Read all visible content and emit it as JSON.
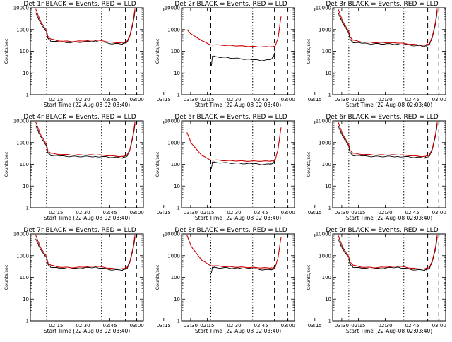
{
  "chart_data": [
    {
      "type": "line",
      "title": "Det 1r BLACK = Events, RED = LLD",
      "xlabel": "Start Time (22-Aug-08 02:03:40)",
      "ylabel": "Counts/sec",
      "x_ticks": [
        "02:15",
        "02:30",
        "02:45",
        "03:00",
        "03:15",
        "03:30"
      ],
      "y_ticks": [
        "1",
        "10",
        "100",
        "1000",
        "10000"
      ],
      "ylim": [
        1,
        10000
      ],
      "yscale": "log",
      "xlim": [
        -180,
        3600
      ],
      "vlines": [
        {
          "x": 360,
          "style": "dotted"
        },
        {
          "x": 2200,
          "style": "dotted"
        },
        {
          "x": 3000,
          "style": "dashed"
        },
        {
          "x": 3370,
          "style": "dashed"
        }
      ],
      "series": [
        {
          "name": "BLACK = Events",
          "color": "#000000",
          "x": [
            0,
            150,
            360,
            400,
            500,
            800,
            1200,
            1600,
            2000,
            2300,
            2600,
            2900,
            3050,
            3150,
            3260,
            3320
          ],
          "y": [
            6000,
            2000,
            800,
            400,
            300,
            260,
            250,
            270,
            300,
            250,
            220,
            220,
            250,
            500,
            2000,
            7000
          ]
        },
        {
          "name": "RED = LLD",
          "color": "#cc0000",
          "x": [
            0,
            150,
            360,
            400,
            500,
            800,
            1200,
            1600,
            2000,
            2300,
            2600,
            2900,
            3050,
            3150,
            3260,
            3320
          ],
          "y": [
            9000,
            2500,
            900,
            500,
            360,
            300,
            280,
            300,
            330,
            290,
            250,
            250,
            280,
            550,
            2500,
            9000
          ]
        }
      ]
    },
    {
      "type": "line",
      "title": "Det 2r BLACK = Events, RED = LLD",
      "xlabel": "Start Time (22-Aug-08 02:03:40)",
      "ylabel": "Counts/sec",
      "x_ticks": [
        "02:15",
        "02:30",
        "02:45",
        "03:00",
        "03:15",
        "03:30"
      ],
      "y_ticks": [
        "1",
        "10",
        "100",
        "1000",
        "10000"
      ],
      "ylim": [
        1,
        10000
      ],
      "yscale": "log",
      "xlim": [
        -180,
        3600
      ],
      "vlines": [
        {
          "x": 800,
          "style": "dashed"
        },
        {
          "x": 2200,
          "style": "dotted"
        },
        {
          "x": 2930,
          "style": "dashed"
        },
        {
          "x": 3370,
          "style": "dashed"
        }
      ],
      "series": [
        {
          "name": "BLACK = Events",
          "color": "#000000",
          "x": [
            820,
            850,
            1000,
            1400,
            1800,
            2200,
            2500,
            2800,
            2900,
            2960
          ],
          "y": [
            20,
            60,
            55,
            50,
            45,
            40,
            38,
            40,
            60,
            100
          ]
        },
        {
          "name": "RED = LLD",
          "color": "#cc0000",
          "x": [
            0,
            150,
            500,
            800,
            1200,
            1600,
            2000,
            2400,
            2800,
            2950,
            3050,
            3150
          ],
          "y": [
            1000,
            600,
            300,
            200,
            190,
            180,
            170,
            160,
            160,
            170,
            400,
            4000
          ]
        }
      ]
    },
    {
      "type": "line",
      "title": "Det 3r BLACK = Events, RED = LLD",
      "xlabel": "Start Time (22-Aug-08 02:03:40)",
      "ylabel": "Counts/sec",
      "x_ticks": [
        "02:15",
        "02:30",
        "02:45",
        "03:00",
        "03:15",
        "03:30"
      ],
      "y_ticks": [
        "1",
        "10",
        "100",
        "1000",
        "10000"
      ],
      "ylim": [
        1,
        10000
      ],
      "yscale": "log",
      "xlim": [
        -180,
        3600
      ],
      "vlines": [
        {
          "x": 360,
          "style": "dotted"
        },
        {
          "x": 2200,
          "style": "dotted"
        },
        {
          "x": 3000,
          "style": "dashed"
        },
        {
          "x": 3370,
          "style": "dashed"
        }
      ],
      "series": [
        {
          "name": "BLACK = Events",
          "color": "#000000",
          "x": [
            0,
            150,
            360,
            400,
            500,
            800,
            1200,
            1600,
            2000,
            2300,
            2600,
            2900,
            3050,
            3150,
            3260,
            3320
          ],
          "y": [
            6000,
            2000,
            700,
            350,
            260,
            230,
            220,
            220,
            210,
            200,
            180,
            170,
            200,
            400,
            1800,
            7000
          ]
        },
        {
          "name": "RED = LLD",
          "color": "#cc0000",
          "x": [
            0,
            150,
            360,
            400,
            500,
            800,
            1200,
            1600,
            2000,
            2300,
            2600,
            2900,
            3050,
            3150,
            3260,
            3320
          ],
          "y": [
            9000,
            2500,
            800,
            450,
            320,
            270,
            250,
            250,
            240,
            220,
            200,
            190,
            220,
            450,
            2200,
            9000
          ]
        }
      ]
    },
    {
      "type": "line",
      "title": "Det 4r BLACK = Events, RED = LLD",
      "xlabel": "Start Time (22-Aug-08 02:03:40)",
      "ylabel": "Counts/sec",
      "x_ticks": [
        "02:15",
        "02:30",
        "02:45",
        "03:00",
        "03:15",
        "03:30"
      ],
      "y_ticks": [
        "1",
        "10",
        "100",
        "1000",
        "10000"
      ],
      "ylim": [
        1,
        10000
      ],
      "yscale": "log",
      "xlim": [
        -180,
        3600
      ],
      "vlines": [
        {
          "x": 360,
          "style": "dotted"
        },
        {
          "x": 2200,
          "style": "dotted"
        },
        {
          "x": 3000,
          "style": "dashed"
        },
        {
          "x": 3370,
          "style": "dashed"
        }
      ],
      "series": [
        {
          "name": "BLACK = Events",
          "color": "#000000",
          "x": [
            0,
            150,
            360,
            400,
            500,
            800,
            1200,
            1600,
            2000,
            2300,
            2600,
            2900,
            3050,
            3150,
            3260,
            3320
          ],
          "y": [
            6000,
            2000,
            700,
            350,
            260,
            240,
            230,
            230,
            230,
            220,
            210,
            200,
            230,
            450,
            2000,
            7000
          ]
        },
        {
          "name": "RED = LLD",
          "color": "#cc0000",
          "x": [
            0,
            150,
            360,
            400,
            500,
            800,
            1200,
            1600,
            2000,
            2300,
            2600,
            2900,
            3050,
            3150,
            3260,
            3320
          ],
          "y": [
            9000,
            2500,
            800,
            450,
            320,
            290,
            270,
            270,
            270,
            260,
            240,
            230,
            260,
            500,
            2400,
            9000
          ]
        }
      ]
    },
    {
      "type": "line",
      "title": "Det 5r BLACK = Events, RED = LLD",
      "xlabel": "Start Time (22-Aug-08 02:03:40)",
      "ylabel": "Counts/sec",
      "x_ticks": [
        "02:15",
        "02:30",
        "02:45",
        "03:00",
        "03:15",
        "03:30"
      ],
      "y_ticks": [
        "1",
        "10",
        "100",
        "1000",
        "10000"
      ],
      "ylim": [
        1,
        10000
      ],
      "yscale": "log",
      "xlim": [
        -180,
        3600
      ],
      "vlines": [
        {
          "x": 800,
          "style": "dashed"
        },
        {
          "x": 2200,
          "style": "dotted"
        },
        {
          "x": 2930,
          "style": "dashed"
        },
        {
          "x": 3370,
          "style": "dashed"
        }
      ],
      "series": [
        {
          "name": "BLACK = Events",
          "color": "#000000",
          "x": [
            820,
            850,
            1000,
            1400,
            1800,
            2200,
            2500,
            2800,
            2900,
            2960
          ],
          "y": [
            60,
            130,
            120,
            115,
            110,
            105,
            100,
            100,
            120,
            200
          ]
        },
        {
          "name": "RED = LLD",
          "color": "#cc0000",
          "x": [
            0,
            150,
            500,
            800,
            1200,
            1600,
            2000,
            2400,
            2800,
            2950,
            3050,
            3150
          ],
          "y": [
            3000,
            900,
            250,
            160,
            150,
            145,
            140,
            140,
            140,
            150,
            500,
            5000
          ]
        }
      ]
    },
    {
      "type": "line",
      "title": "Det 6r BLACK = Events, RED = LLD",
      "xlabel": "Start Time (22-Aug-08 02:03:40)",
      "ylabel": "Counts/sec",
      "x_ticks": [
        "02:15",
        "02:30",
        "02:45",
        "03:00",
        "03:15",
        "03:30"
      ],
      "y_ticks": [
        "1",
        "10",
        "100",
        "1000",
        "10000"
      ],
      "ylim": [
        1,
        10000
      ],
      "yscale": "log",
      "xlim": [
        -180,
        3600
      ],
      "vlines": [
        {
          "x": 360,
          "style": "dotted"
        },
        {
          "x": 2200,
          "style": "dotted"
        },
        {
          "x": 3000,
          "style": "dashed"
        },
        {
          "x": 3370,
          "style": "dashed"
        }
      ],
      "series": [
        {
          "name": "BLACK = Events",
          "color": "#000000",
          "x": [
            0,
            150,
            360,
            400,
            500,
            800,
            1200,
            1600,
            2000,
            2300,
            2600,
            2900,
            3050,
            3150,
            3260,
            3320
          ],
          "y": [
            6000,
            2000,
            700,
            350,
            260,
            240,
            230,
            230,
            230,
            220,
            210,
            200,
            230,
            450,
            2000,
            7000
          ]
        },
        {
          "name": "RED = LLD",
          "color": "#cc0000",
          "x": [
            0,
            150,
            360,
            400,
            500,
            800,
            1200,
            1600,
            2000,
            2300,
            2600,
            2900,
            3050,
            3150,
            3260,
            3320
          ],
          "y": [
            9000,
            2500,
            800,
            450,
            320,
            290,
            270,
            270,
            270,
            260,
            240,
            230,
            260,
            500,
            2400,
            9000
          ]
        }
      ]
    },
    {
      "type": "line",
      "title": "Det 7r BLACK = Events, RED = LLD",
      "xlabel": "Start Time (22-Aug-08 02:03:40)",
      "ylabel": "Counts/sec",
      "x_ticks": [
        "02:15",
        "02:30",
        "02:45",
        "03:00",
        "03:15",
        "03:30"
      ],
      "y_ticks": [
        "1",
        "10",
        "100",
        "1000",
        "10000"
      ],
      "ylim": [
        1,
        10000
      ],
      "yscale": "log",
      "xlim": [
        -180,
        3600
      ],
      "vlines": [
        {
          "x": 360,
          "style": "dotted"
        },
        {
          "x": 2200,
          "style": "dotted"
        },
        {
          "x": 3000,
          "style": "dashed"
        },
        {
          "x": 3370,
          "style": "dashed"
        }
      ],
      "series": [
        {
          "name": "BLACK = Events",
          "color": "#000000",
          "x": [
            0,
            150,
            360,
            400,
            500,
            800,
            1200,
            1600,
            2000,
            2300,
            2600,
            2900,
            3050,
            3150,
            3260,
            3320
          ],
          "y": [
            6000,
            2000,
            800,
            400,
            300,
            260,
            250,
            270,
            300,
            250,
            220,
            220,
            250,
            500,
            2000,
            7000
          ]
        },
        {
          "name": "RED = LLD",
          "color": "#cc0000",
          "x": [
            0,
            150,
            360,
            400,
            500,
            800,
            1200,
            1600,
            2000,
            2300,
            2600,
            2900,
            3050,
            3150,
            3260,
            3320
          ],
          "y": [
            9000,
            2500,
            900,
            500,
            360,
            300,
            280,
            300,
            330,
            290,
            250,
            250,
            280,
            550,
            2500,
            9000
          ]
        }
      ]
    },
    {
      "type": "line",
      "title": "Det 8r BLACK = Events, RED = LLD",
      "xlabel": "Start Time (22-Aug-08 02:03:40)",
      "ylabel": "Counts/sec",
      "x_ticks": [
        "02:15",
        "02:30",
        "02:45",
        "03:00",
        "03:15",
        "03:30"
      ],
      "y_ticks": [
        "1",
        "10",
        "100",
        "1000",
        "10000"
      ],
      "ylim": [
        1,
        10000
      ],
      "yscale": "log",
      "xlim": [
        -180,
        3600
      ],
      "vlines": [
        {
          "x": 800,
          "style": "dotted"
        },
        {
          "x": 2200,
          "style": "dotted"
        },
        {
          "x": 2930,
          "style": "dashed"
        },
        {
          "x": 3370,
          "style": "dashed"
        }
      ],
      "series": [
        {
          "name": "BLACK = Events",
          "color": "#000000",
          "x": [
            820,
            850,
            1000,
            1400,
            1800,
            2200,
            2500,
            2800,
            2900,
            2960
          ],
          "y": [
            150,
            300,
            280,
            270,
            260,
            250,
            230,
            220,
            250,
            400
          ]
        },
        {
          "name": "RED = LLD",
          "color": "#cc0000",
          "x": [
            0,
            150,
            500,
            800,
            1200,
            1600,
            2000,
            2400,
            2800,
            2950,
            3050,
            3150
          ],
          "y": [
            9000,
            2500,
            600,
            350,
            320,
            300,
            290,
            280,
            270,
            280,
            800,
            7000
          ]
        }
      ]
    },
    {
      "type": "line",
      "title": "Det 9r BLACK = Events, RED = LLD",
      "xlabel": "Start Time (22-Aug-08 02:03:40)",
      "ylabel": "Counts/sec",
      "x_ticks": [
        "02:15",
        "02:30",
        "02:45",
        "03:00",
        "03:15",
        "03:30"
      ],
      "y_ticks": [
        "1",
        "10",
        "100",
        "1000",
        "10000"
      ],
      "ylim": [
        1,
        10000
      ],
      "yscale": "log",
      "xlim": [
        -180,
        3600
      ],
      "vlines": [
        {
          "x": 360,
          "style": "dotted"
        },
        {
          "x": 2200,
          "style": "dotted"
        },
        {
          "x": 3000,
          "style": "dashed"
        },
        {
          "x": 3370,
          "style": "dashed"
        }
      ],
      "series": [
        {
          "name": "BLACK = Events",
          "color": "#000000",
          "x": [
            0,
            150,
            360,
            400,
            500,
            800,
            1200,
            1600,
            2000,
            2300,
            2600,
            2900,
            3050,
            3150,
            3260,
            3320
          ],
          "y": [
            6000,
            2000,
            800,
            400,
            300,
            260,
            250,
            270,
            300,
            250,
            220,
            220,
            250,
            500,
            2000,
            7000
          ]
        },
        {
          "name": "RED = LLD",
          "color": "#cc0000",
          "x": [
            0,
            150,
            360,
            400,
            500,
            800,
            1200,
            1600,
            2000,
            2300,
            2600,
            2900,
            3050,
            3150,
            3260,
            3320
          ],
          "y": [
            9000,
            2500,
            900,
            500,
            360,
            300,
            280,
            300,
            330,
            290,
            250,
            250,
            280,
            550,
            2500,
            9000
          ]
        }
      ]
    }
  ]
}
